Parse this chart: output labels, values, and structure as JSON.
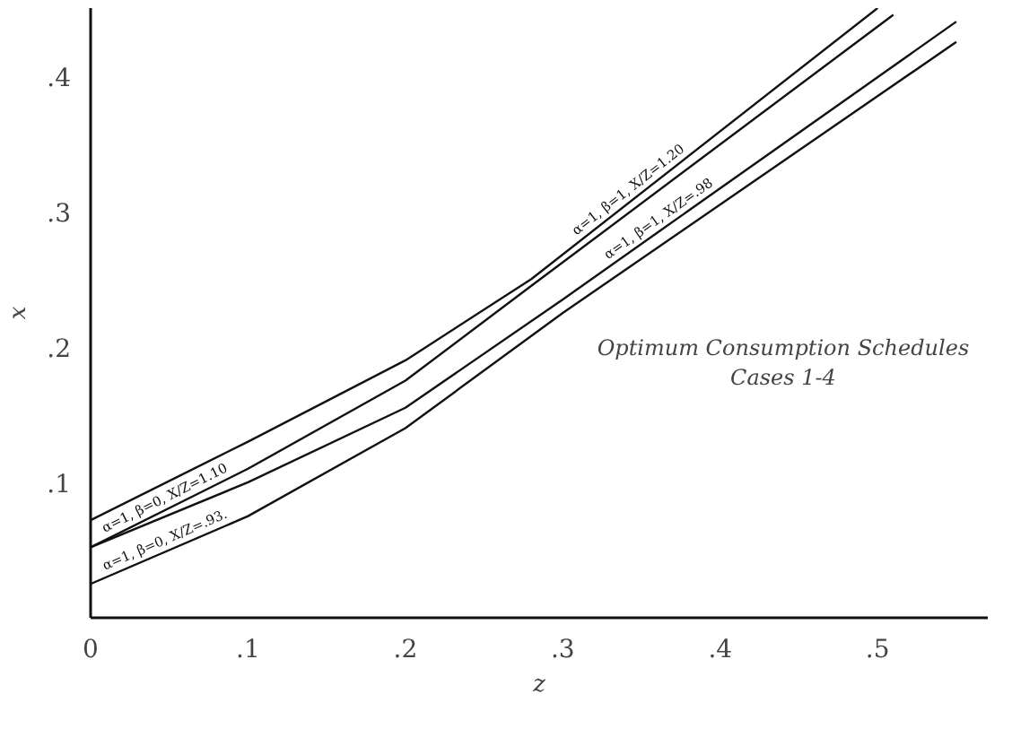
{
  "chart_data": {
    "type": "line",
    "xlabel": "z",
    "ylabel": "x",
    "xlim": [
      0,
      0.57
    ],
    "ylim": [
      0,
      0.45
    ],
    "xticks": [
      0,
      {
        "value": 0.1,
        "label": ".1"
      },
      {
        "value": 0.2,
        "label": ".2"
      },
      {
        "value": 0.3,
        "label": ".3"
      },
      {
        "value": 0.4,
        "label": ".4"
      },
      {
        "value": 0.5,
        "label": ".5"
      }
    ],
    "yticks": [
      {
        "value": 0.1,
        "label": ".1"
      },
      {
        "value": 0.2,
        "label": ".2"
      },
      {
        "value": 0.3,
        "label": ".3"
      },
      {
        "value": 0.4,
        "label": ".4"
      }
    ],
    "grid": false,
    "series": [
      {
        "name": "α=1, β=1, X/Z=1.20",
        "color": "#111111",
        "x": [
          0,
          0.1,
          0.2,
          0.28,
          0.5
        ],
        "values": [
          0.072,
          0.13,
          0.19,
          0.25,
          0.45
        ]
      },
      {
        "name": "α=1, β=0, X/Z=1.10",
        "color": "#111111",
        "x": [
          0,
          0.1,
          0.2,
          0.28,
          0.51
        ],
        "values": [
          0.052,
          0.11,
          0.175,
          0.245,
          0.445
        ]
      },
      {
        "name": "α=1, β=1, X/Z=.98",
        "color": "#111111",
        "x": [
          0,
          0.1,
          0.2,
          0.3,
          0.55
        ],
        "values": [
          0.052,
          0.1,
          0.155,
          0.235,
          0.44
        ]
      },
      {
        "name": "α=1, β=0, X/Z=.93.",
        "color": "#111111",
        "x": [
          0,
          0.1,
          0.2,
          0.3,
          0.55
        ],
        "values": [
          0.025,
          0.075,
          0.14,
          0.225,
          0.425
        ]
      }
    ],
    "annotations": [
      "Optimum Consumption Schedules",
      "Cases 1-4"
    ]
  }
}
